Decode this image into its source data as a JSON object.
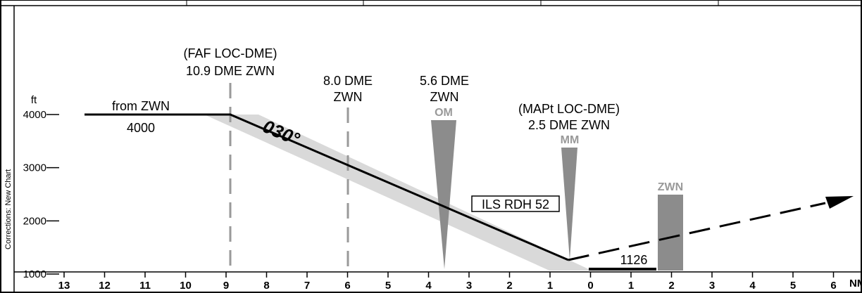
{
  "sidebar_text": "Corrections: New Chart",
  "y_unit": "ft",
  "x_unit": "NM",
  "colors": {
    "ink": "#000000",
    "gray": "#999999",
    "shade": "#d9d9d9",
    "marker": "#8c8c8c"
  },
  "labels": {
    "from_text": "from ZWN",
    "from_alt": "4000",
    "course": "030°",
    "faf_line1": "(FAF LOC-DME)",
    "faf_line2": "10.9 DME ZWN",
    "dme8_line1": "8.0 DME",
    "dme8_line2": "ZWN",
    "dme56_line1": "5.6 DME",
    "dme56_line2": "ZWN",
    "om": "OM",
    "mapt_line1": "(MAPt LOC-DME)",
    "mapt_line2": "2.5 DME ZWN",
    "mm": "MM",
    "ils_rdh": "ILS RDH 52",
    "zwn": "ZWN",
    "runway_elev": "1126"
  },
  "chart_data": {
    "type": "profile",
    "x_ticks": [
      "13",
      "12",
      "11",
      "10",
      "9",
      "8",
      "7",
      "6",
      "5",
      "4",
      "3",
      "2",
      "1",
      "0",
      "1",
      "2",
      "3",
      "4",
      "5",
      "6"
    ],
    "y_ticks": [
      {
        "label": "4000",
        "value": 4000
      },
      {
        "label": "3000",
        "value": 3000
      },
      {
        "label": "2000",
        "value": 2000
      },
      {
        "label": "1000",
        "value": 1000
      }
    ],
    "profile": [
      {
        "nm": 13.5,
        "ft": 4000
      },
      {
        "nm": 9.0,
        "ft": 4000
      },
      {
        "nm": -0.5,
        "ft": 1260
      }
    ],
    "missed_approach": [
      {
        "nm": -0.5,
        "ft": 1260
      },
      {
        "nm": -6.5,
        "ft": 2530
      }
    ],
    "fixes_nm": {
      "faf": 9.0,
      "dme8": 6.0,
      "om": 3.6,
      "mm": 0.5,
      "zwn": -1.9
    },
    "runway_nm": [
      0.0,
      -1.6
    ]
  }
}
